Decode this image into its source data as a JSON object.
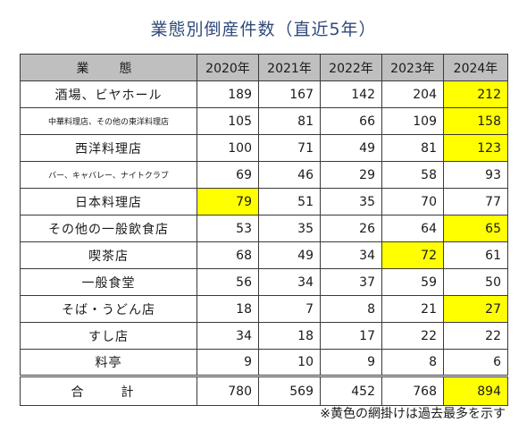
{
  "title": "業態別倒産件数（直近5年）",
  "header": {
    "category": "業　態",
    "years": [
      "2020年",
      "2021年",
      "2022年",
      "2023年",
      "2024年"
    ]
  },
  "rows": [
    {
      "name": "酒場、ビヤホール",
      "small": false,
      "values": [
        "189",
        "167",
        "142",
        "204",
        "212"
      ],
      "highlight": [
        false,
        false,
        false,
        false,
        true
      ]
    },
    {
      "name": "中華料理店、その他の東洋料理店",
      "small": true,
      "values": [
        "105",
        "81",
        "66",
        "109",
        "158"
      ],
      "highlight": [
        false,
        false,
        false,
        false,
        true
      ]
    },
    {
      "name": "西洋料理店",
      "small": false,
      "values": [
        "100",
        "71",
        "49",
        "81",
        "123"
      ],
      "highlight": [
        false,
        false,
        false,
        false,
        true
      ]
    },
    {
      "name": "バー、キャバレー、ナイトクラブ",
      "small": true,
      "values": [
        "69",
        "46",
        "29",
        "58",
        "93"
      ],
      "highlight": [
        false,
        false,
        false,
        false,
        false
      ]
    },
    {
      "name": "日本料理店",
      "small": false,
      "values": [
        "79",
        "51",
        "35",
        "70",
        "77"
      ],
      "highlight": [
        true,
        false,
        false,
        false,
        false
      ]
    },
    {
      "name": "その他の一般飲食店",
      "small": false,
      "values": [
        "53",
        "35",
        "26",
        "64",
        "65"
      ],
      "highlight": [
        false,
        false,
        false,
        false,
        true
      ]
    },
    {
      "name": "喫茶店",
      "small": false,
      "values": [
        "68",
        "49",
        "34",
        "72",
        "61"
      ],
      "highlight": [
        false,
        false,
        false,
        true,
        false
      ]
    },
    {
      "name": "一般食堂",
      "small": false,
      "values": [
        "56",
        "34",
        "37",
        "59",
        "50"
      ],
      "highlight": [
        false,
        false,
        false,
        false,
        false
      ]
    },
    {
      "name": "そば・うどん店",
      "small": false,
      "values": [
        "18",
        "7",
        "8",
        "21",
        "27"
      ],
      "highlight": [
        false,
        false,
        false,
        false,
        true
      ]
    },
    {
      "name": "すし店",
      "small": false,
      "values": [
        "34",
        "18",
        "17",
        "22",
        "22"
      ],
      "highlight": [
        false,
        false,
        false,
        false,
        false
      ]
    },
    {
      "name": "料亭",
      "small": false,
      "values": [
        "9",
        "10",
        "9",
        "8",
        "6"
      ],
      "highlight": [
        false,
        false,
        false,
        false,
        false
      ]
    }
  ],
  "total": {
    "name": "合　計",
    "values": [
      "780",
      "569",
      "452",
      "768",
      "894"
    ],
    "highlight": [
      false,
      false,
      false,
      false,
      true
    ]
  },
  "note": "※黄色の網掛けは過去最多を示す",
  "colors": {
    "highlight": "#ffff00",
    "header_bg": "#bfbfbf",
    "title": "#2f4a7a"
  }
}
